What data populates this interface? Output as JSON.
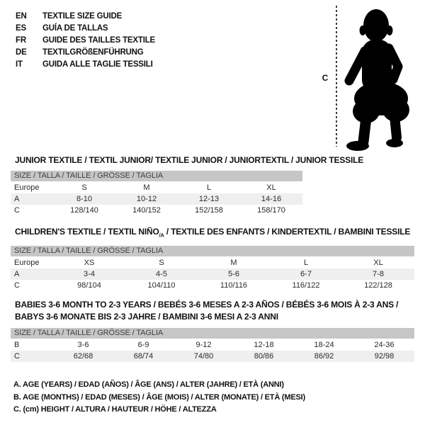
{
  "colors": {
    "header_bar": "#c6c6c6",
    "row_stripe": "#efefef",
    "title_text": "#111111",
    "body_text": "#2a2a2a",
    "silhouette": "#000000"
  },
  "languages": [
    {
      "code": "EN",
      "title": "TEXTILE SIZE GUIDE"
    },
    {
      "code": "ES",
      "title": "GUÍA DE TALLAS"
    },
    {
      "code": "FR",
      "title": "GUIDE DES TAILLES TEXTILE"
    },
    {
      "code": "DE",
      "title": "TEXTILGRÖßENFÜHRUNG"
    },
    {
      "code": "IT",
      "title": "GUIDA ALLE TAGLIE TESSILI"
    }
  ],
  "figure": {
    "height_label": "C"
  },
  "tables": [
    {
      "title": "JUNIOR TEXTILE / TEXTIL JUNIOR/ TEXTILE JUNIOR / JUNIORTEXTIL / JUNIOR TESSILE",
      "size_header": "SIZE / TALLA / TAILLE / GRÖSSE / TAGLIA",
      "rows": [
        {
          "label": "Europe",
          "values": [
            "S",
            "M",
            "L",
            "XL"
          ]
        },
        {
          "label": "A",
          "values": [
            "8-10",
            "10-12",
            "12-13",
            "14-16"
          ]
        },
        {
          "label": "C",
          "values": [
            "128/140",
            "140/152",
            "152/158",
            "158/170"
          ]
        }
      ]
    },
    {
      "title_pre": "CHILDREN'S TEXTILE / TEXTIL NIÑO",
      "title_sub": "/A",
      "title_post": " / TEXTILE DES ENFANTS / KINDERTEXTIL / BAMBINI TESSILE",
      "size_header": "SIZE / TALLA / TAILLE / GRÖSSE / TAGLIA",
      "rows": [
        {
          "label": "Europe",
          "values": [
            "XS",
            "S",
            "M",
            "L",
            "XL"
          ]
        },
        {
          "label": "A",
          "values": [
            "3-4",
            "4-5",
            "5-6",
            "6-7",
            "7-8"
          ]
        },
        {
          "label": "C",
          "values": [
            "98/104",
            "104/110",
            "110/116",
            "116/122",
            "122/128"
          ]
        }
      ]
    },
    {
      "title_line1": "BABIES 3-6 MONTH TO 2-3 YEARS / BEBÉS 3-6 MESES A 2-3 AÑOS / BÉBÉS 3-6 MOIS À 2-3 ANS /",
      "title_line2": "BABYS 3-6 MONATE BIS 2-3 JAHRE / BAMBINI 3-6 MESI A 2-3 ANNI",
      "size_header": "SIZE / TALLA / TAILLE / GRÖSSE / TAGLIA",
      "rows": [
        {
          "label": "B",
          "values": [
            "3-6",
            "6-9",
            "9-12",
            "12-18",
            "18-24",
            "24-36"
          ]
        },
        {
          "label": "C",
          "values": [
            "62/68",
            "68/74",
            "74/80",
            "80/86",
            "86/92",
            "92/98"
          ]
        }
      ]
    }
  ],
  "legend": [
    "A. AGE (YEARS) / EDAD (AÑOS) / ÂGE (ANS) / ALTER (JAHRE) / ETÀ (ANNI)",
    "B. AGE (MONTHS) / EDAD (MESES) / ÂGE (MOIS) / ALTER (MONATE) / ETÀ (MESI)",
    "C. (cm) HEIGHT / ALTURA / HAUTEUR / HÖHE / ALTEZZA"
  ]
}
